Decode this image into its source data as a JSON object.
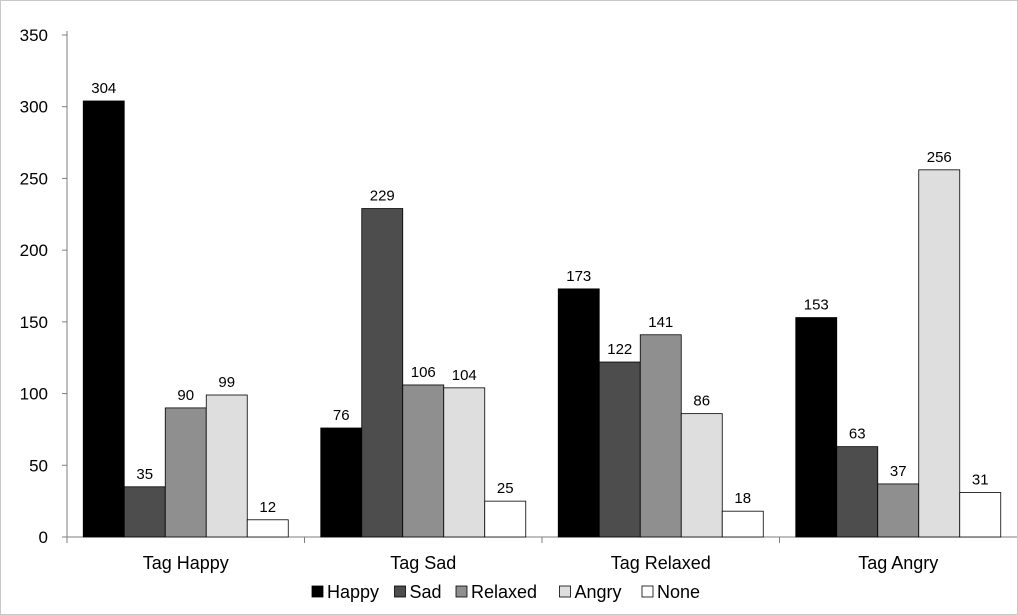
{
  "chart_data": {
    "type": "bar",
    "title": "",
    "xlabel": "",
    "ylabel": "",
    "categories": [
      "Tag Happy",
      "Tag Sad",
      "Tag Relaxed",
      "Tag Angry"
    ],
    "ylim": [
      0,
      350
    ],
    "yticks": [
      0,
      50,
      100,
      150,
      200,
      250,
      300,
      350
    ],
    "grid": false,
    "legend_position": "bottom",
    "series": [
      {
        "name": "Happy",
        "color": "#000000",
        "values": [
          304,
          76,
          173,
          153
        ]
      },
      {
        "name": "Sad",
        "color": "#4d4d4d",
        "values": [
          35,
          229,
          122,
          63
        ]
      },
      {
        "name": "Relaxed",
        "color": "#8f8f8f",
        "values": [
          90,
          106,
          141,
          37
        ]
      },
      {
        "name": "Angry",
        "color": "#dedede",
        "values": [
          99,
          104,
          86,
          256
        ]
      },
      {
        "name": "None",
        "color": "#ffffff",
        "values": [
          12,
          25,
          18,
          31
        ]
      }
    ]
  }
}
